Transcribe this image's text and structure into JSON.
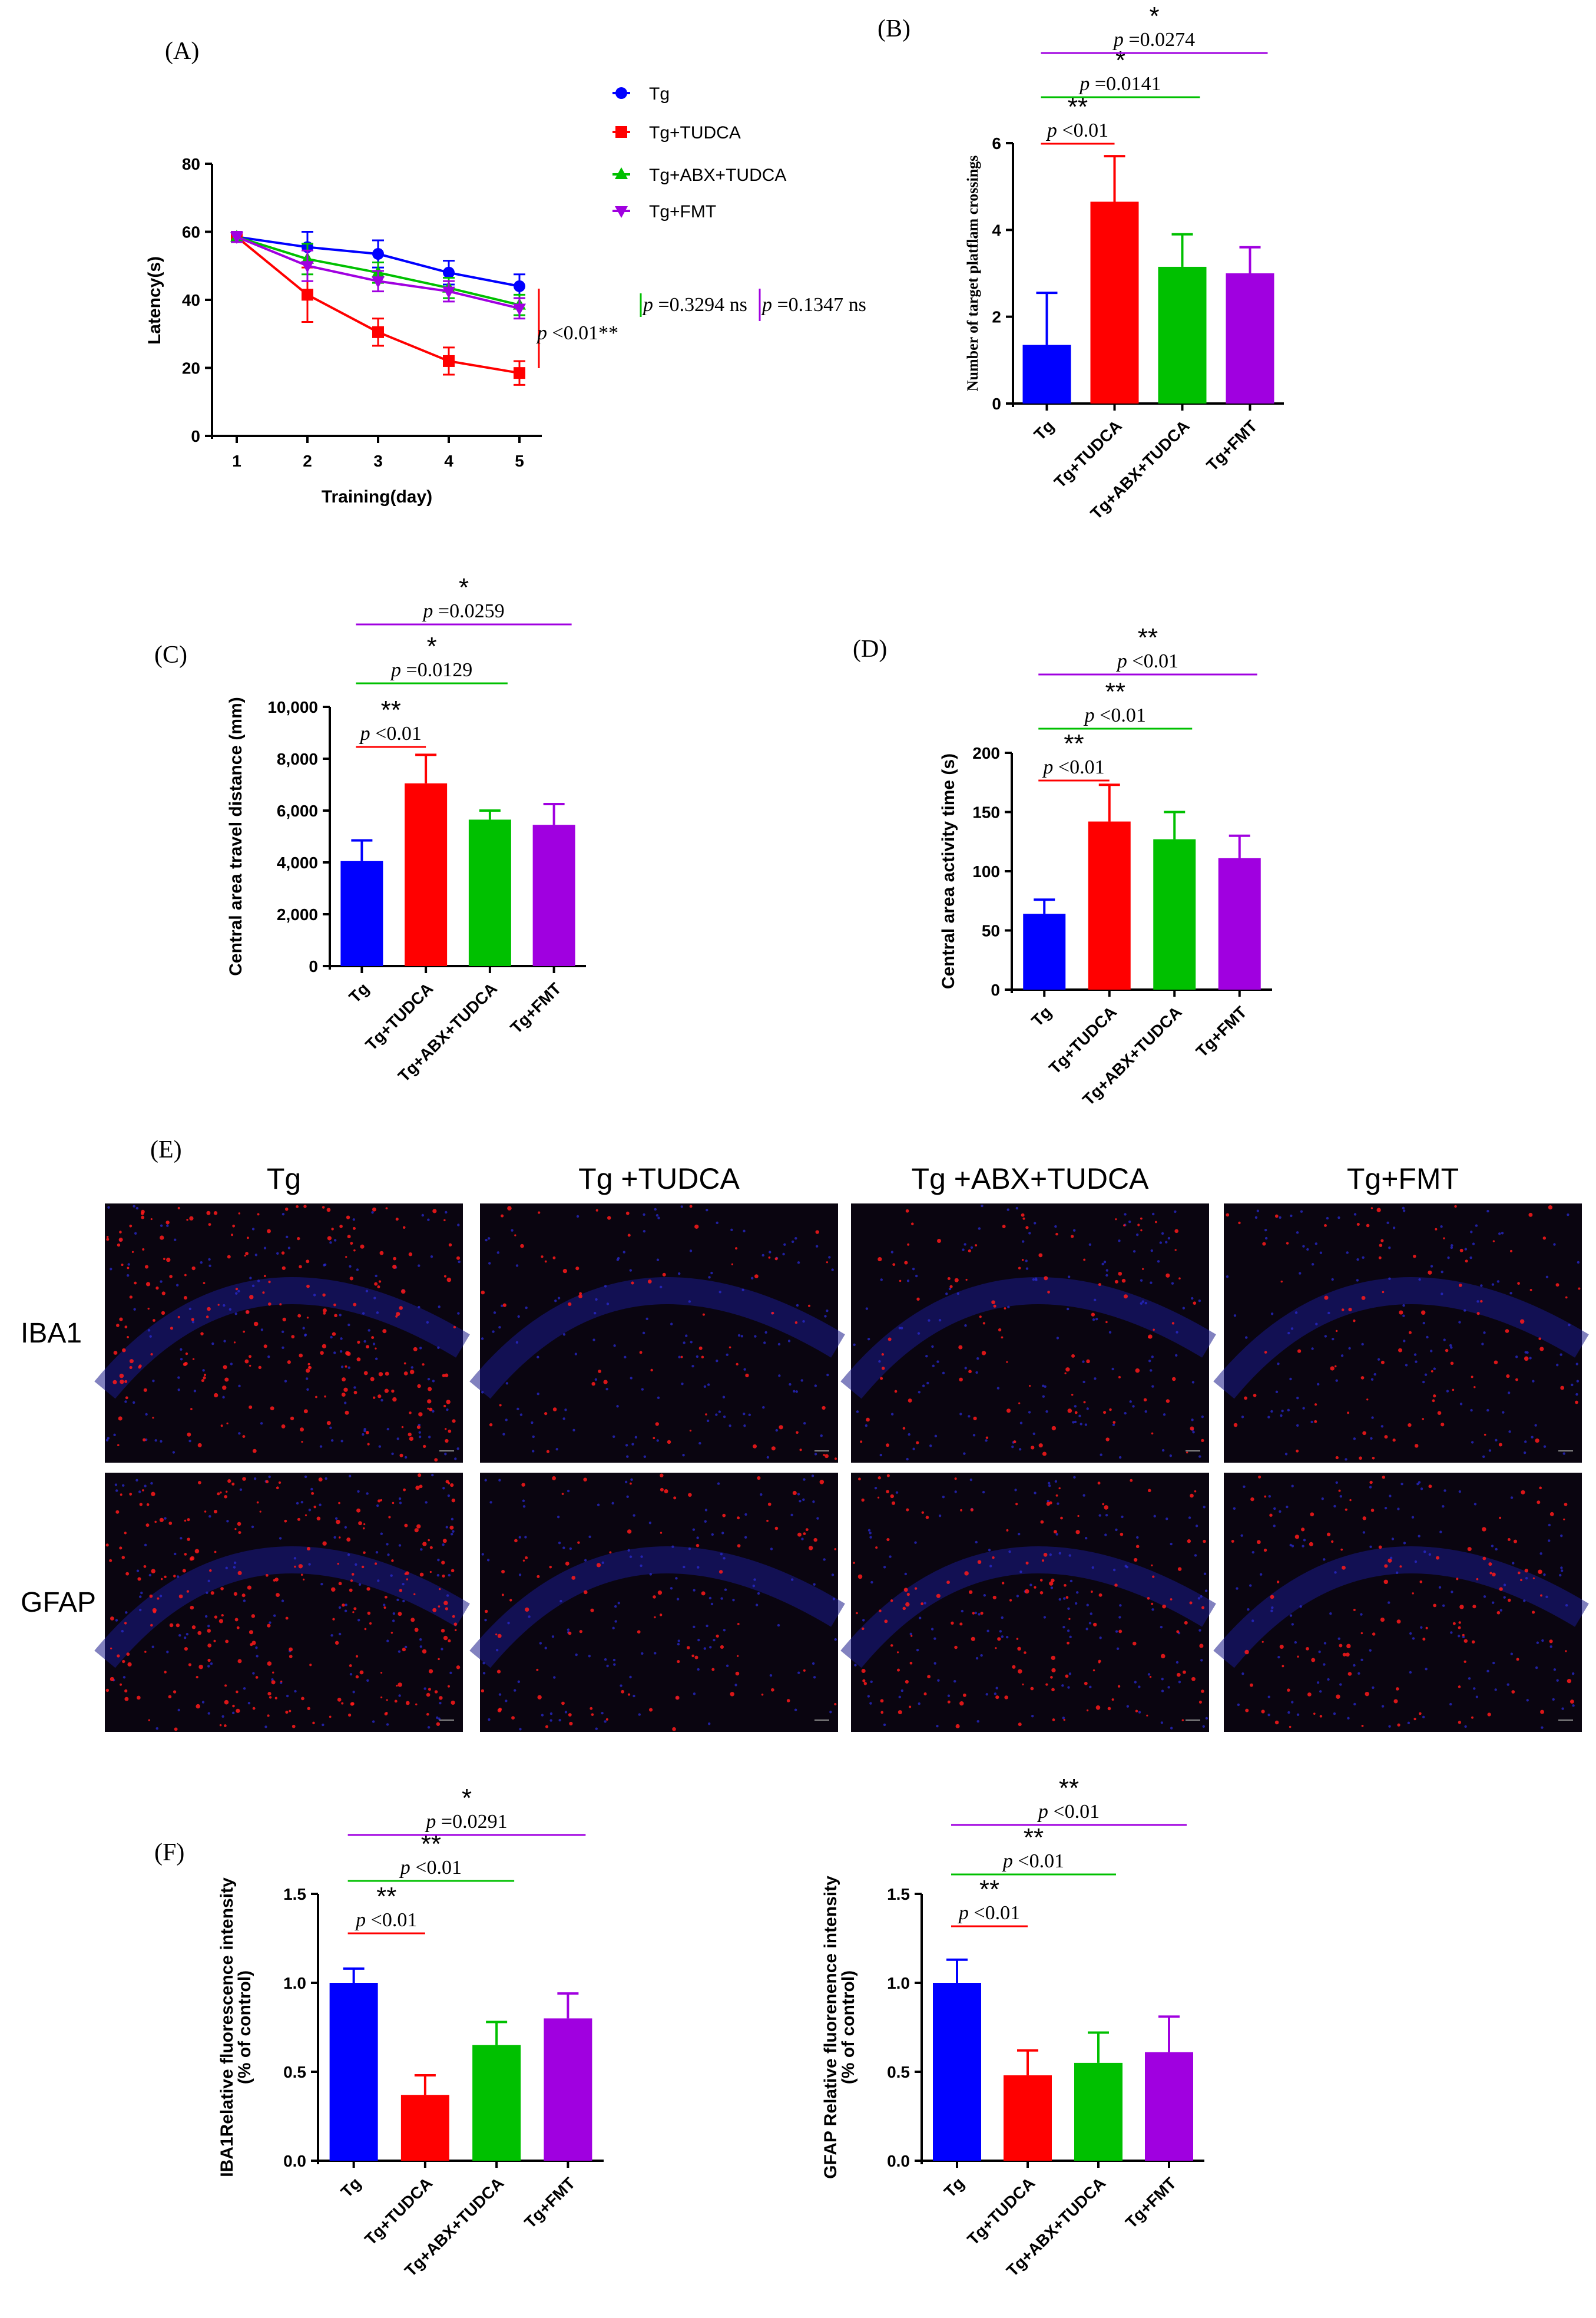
{
  "colors": {
    "Tg": "#0000ff",
    "Tg+TUDCA": "#ff0000",
    "Tg+ABX+TUDCA": "#00c000",
    "Tg+FMT": "#a000e0",
    "micrograph_bg": "#0a0510"
  },
  "panels": {
    "A": {
      "letter": "(A)"
    },
    "B": {
      "letter": "(B)"
    },
    "C": {
      "letter": "(C)"
    },
    "D": {
      "letter": "(D)"
    },
    "E": {
      "letter": "(E)",
      "columns": [
        "Tg",
        "Tg +TUDCA",
        "Tg +ABX+TUDCA",
        "Tg+FMT"
      ],
      "rows": [
        "IBA1",
        "GFAP"
      ],
      "red_density": [
        [
          0.9,
          0.25,
          0.4,
          0.35
        ],
        [
          1.0,
          0.35,
          0.6,
          0.45
        ]
      ]
    },
    "F": {
      "letter": "(F)"
    }
  },
  "chart_data": [
    {
      "id": "A",
      "type": "line",
      "xlabel": "Training(day)",
      "ylabel": "Latency(s)",
      "x": [
        1,
        2,
        3,
        4,
        5
      ],
      "xticks": [
        "1",
        "2",
        "3",
        "4",
        "5"
      ],
      "ylim": [
        0,
        80
      ],
      "yticks": [
        "0",
        "20",
        "40",
        "60",
        "80"
      ],
      "legend_position": "top-right",
      "series": [
        {
          "name": "Tg",
          "marker": "circle",
          "values": [
            58.5,
            55.5,
            53.5,
            48,
            44
          ],
          "errors": [
            1.5,
            4.5,
            4,
            3.5,
            3.5
          ]
        },
        {
          "name": "Tg+TUDCA",
          "marker": "square",
          "values": [
            58.5,
            41.5,
            30.5,
            22,
            18.5
          ],
          "errors": [
            1.5,
            8,
            4,
            4,
            3.5
          ]
        },
        {
          "name": "Tg+ABX+TUDCA",
          "marker": "triangle-up",
          "values": [
            58.5,
            52,
            48,
            43.5,
            38.5
          ],
          "errors": [
            1.5,
            4.5,
            3,
            3,
            3
          ]
        },
        {
          "name": "Tg+FMT",
          "marker": "triangle-down",
          "values": [
            58.5,
            50,
            45.5,
            42.5,
            37.5
          ],
          "errors": [
            1.5,
            4.5,
            3,
            3,
            3
          ]
        }
      ],
      "annotations": [
        {
          "text": "p <0.01**",
          "color": "#ff0000",
          "between": "Tg+TUDCA"
        },
        {
          "text": "p =0.3294 ns",
          "color": "#00c000",
          "between": "Tg+ABX+TUDCA"
        },
        {
          "text": "p =0.1347 ns",
          "color": "#a000e0",
          "between": "Tg+FMT"
        }
      ]
    },
    {
      "id": "B",
      "type": "bar",
      "ylabel": "Number of target platflam crossings",
      "categories": [
        "Tg",
        "Tg+TUDCA",
        "Tg+ABX+TUDCA",
        "Tg+FMT"
      ],
      "values": [
        1.35,
        4.65,
        3.15,
        3.0
      ],
      "errors": [
        1.2,
        1.05,
        0.75,
        0.6
      ],
      "ylim": [
        0,
        6
      ],
      "yticks": [
        "0",
        "2",
        "4",
        "6"
      ],
      "significance": [
        {
          "pair": [
            0,
            1
          ],
          "stars": "**",
          "p": "p <0.01",
          "color": "#ff0000"
        },
        {
          "pair": [
            0,
            2
          ],
          "stars": "*",
          "p": "p =0.0141",
          "color": "#00c000"
        },
        {
          "pair": [
            0,
            3
          ],
          "stars": "*",
          "p": "p =0.0274",
          "color": "#a000e0"
        }
      ]
    },
    {
      "id": "C",
      "type": "bar",
      "ylabel": "Central area travel distance (mm)",
      "categories": [
        "Tg",
        "Tg+TUDCA",
        "Tg+ABX+TUDCA",
        "Tg+FMT"
      ],
      "values": [
        4050,
        7050,
        5650,
        5450
      ],
      "errors": [
        800,
        1100,
        350,
        800
      ],
      "ylim": [
        0,
        10000
      ],
      "yticks": [
        "0",
        "2,000",
        "4,000",
        "6,000",
        "8,000",
        "10,000"
      ],
      "significance": [
        {
          "pair": [
            0,
            1
          ],
          "stars": "**",
          "p": "p <0.01",
          "color": "#ff0000"
        },
        {
          "pair": [
            0,
            2
          ],
          "stars": "*",
          "p": "p =0.0129",
          "color": "#00c000"
        },
        {
          "pair": [
            0,
            3
          ],
          "stars": "*",
          "p": "p =0.0259",
          "color": "#a000e0"
        }
      ]
    },
    {
      "id": "D",
      "type": "bar",
      "ylabel": "Central area activity time (s)",
      "categories": [
        "Tg",
        "Tg+TUDCA",
        "Tg+ABX+TUDCA",
        "Tg+FMT"
      ],
      "values": [
        64,
        142,
        127,
        111
      ],
      "errors": [
        12,
        31,
        23,
        19
      ],
      "ylim": [
        0,
        200
      ],
      "yticks": [
        "0",
        "50",
        "100",
        "150",
        "200"
      ],
      "significance": [
        {
          "pair": [
            0,
            1
          ],
          "stars": "**",
          "p": "p <0.01",
          "color": "#ff0000"
        },
        {
          "pair": [
            0,
            2
          ],
          "stars": "**",
          "p": "p <0.01",
          "color": "#00c000"
        },
        {
          "pair": [
            0,
            3
          ],
          "stars": "**",
          "p": "p <0.01",
          "color": "#a000e0"
        }
      ]
    },
    {
      "id": "F1",
      "type": "bar",
      "ylabel": [
        "IBA1Relative fluorescence intensity",
        "(% of control)"
      ],
      "categories": [
        "Tg",
        "Tg+TUDCA",
        "Tg+ABX+TUDCA",
        "Tg+FMT"
      ],
      "values": [
        1.0,
        0.37,
        0.65,
        0.8
      ],
      "errors": [
        0.08,
        0.11,
        0.13,
        0.14
      ],
      "ylim": [
        0,
        1.5
      ],
      "yticks": [
        "0.0",
        "0.5",
        "1.0",
        "1.5"
      ],
      "significance": [
        {
          "pair": [
            0,
            1
          ],
          "stars": "**",
          "p": "p <0.01",
          "color": "#ff0000"
        },
        {
          "pair": [
            0,
            2
          ],
          "stars": "**",
          "p": "p <0.01",
          "color": "#00c000"
        },
        {
          "pair": [
            0,
            3
          ],
          "stars": "*",
          "p": "p =0.0291",
          "color": "#a000e0"
        }
      ]
    },
    {
      "id": "F2",
      "type": "bar",
      "ylabel": [
        "GFAP Relative fluorenence intensity",
        "(% of control)"
      ],
      "categories": [
        "Tg",
        "Tg+TUDCA",
        "Tg+ABX+TUDCA",
        "Tg+FMT"
      ],
      "values": [
        1.0,
        0.48,
        0.55,
        0.61
      ],
      "errors": [
        0.13,
        0.14,
        0.17,
        0.2
      ],
      "ylim": [
        0,
        1.5
      ],
      "yticks": [
        "0.0",
        "0.5",
        "1.0",
        "1.5"
      ],
      "significance": [
        {
          "pair": [
            0,
            1
          ],
          "stars": "**",
          "p": "p <0.01",
          "color": "#ff0000"
        },
        {
          "pair": [
            0,
            2
          ],
          "stars": "**",
          "p": "p <0.01",
          "color": "#00c000"
        },
        {
          "pair": [
            0,
            3
          ],
          "stars": "**",
          "p": "p <0.01",
          "color": "#a000e0"
        }
      ]
    }
  ]
}
